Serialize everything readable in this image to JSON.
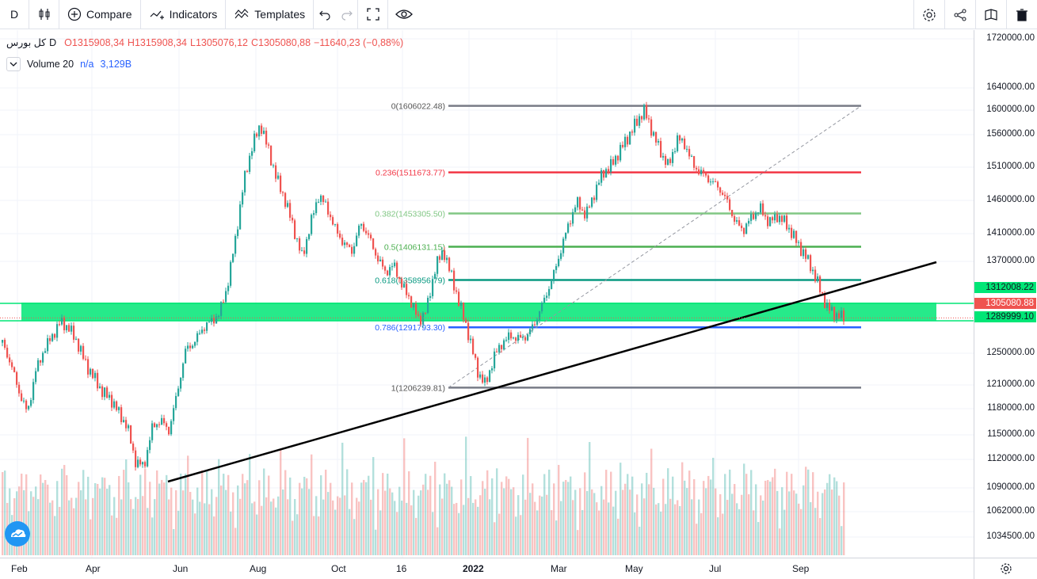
{
  "toolbar": {
    "interval": "D",
    "compare_label": "Compare",
    "indicators_label": "Indicators",
    "templates_label": "Templates"
  },
  "legend": {
    "symbol": "کل بورس",
    "interval": "D",
    "open": "O1315908,34",
    "high": "H1315908,34",
    "low": "L1305076,12",
    "close": "C1305080,88",
    "change": "−11640,23 (−0,88%)"
  },
  "volume_legend": {
    "name": "Volume 20",
    "na": "n/a",
    "value": "3,129B"
  },
  "price_axis": {
    "labels": [
      "1720000.00",
      "1640000.00",
      "1600000.00",
      "1560000.00",
      "1510000.00",
      "1460000.00",
      "1410000.00",
      "1370000.00",
      "1250000.00",
      "1210000.00",
      "1180000.00",
      "1150000.00",
      "1120000.00",
      "1090000.00",
      "1062000.00",
      "1034500.00"
    ],
    "tags": [
      {
        "text": "1312008.22",
        "bg": "#00e676"
      },
      {
        "text": "1305080.88",
        "bg": "#ef5350"
      },
      {
        "text": "1289999.10",
        "bg": "#00e676"
      }
    ]
  },
  "time_axis": {
    "labels": [
      "Feb",
      "Apr",
      "Jun",
      "Aug",
      "Oct",
      "16",
      "2022",
      "Mar",
      "May",
      "Jul",
      "Sep"
    ]
  },
  "fib_levels": [
    {
      "label": "0(1606022.48)",
      "price": 1606022.48,
      "color": "#787b86"
    },
    {
      "label": "0.236(1511673.77)",
      "price": 1511673.77,
      "color": "#f23645"
    },
    {
      "label": "0.382(1453305.50)",
      "price": 1453305.5,
      "color": "#81c784"
    },
    {
      "label": "0.5(1406131.15)",
      "price": 1406131.15,
      "color": "#4caf50"
    },
    {
      "label": "0.618(1358956.79)",
      "price": 1358956.79,
      "color": "#089981"
    },
    {
      "label": "0.786(1291793.30)",
      "price": 1291793.3,
      "color": "#2962ff"
    },
    {
      "label": "1(1206239.81)",
      "price": 1206239.81,
      "color": "#787b86"
    }
  ],
  "colors": {
    "up": "#26a69a",
    "down": "#ef5350",
    "zone": "#00e676",
    "trendline": "#000000"
  },
  "chart_data": {
    "type": "candlestick",
    "series": [
      {
        "name": "کل بورس",
        "close": 1305080.88
      }
    ],
    "ylim": [
      1020000,
      1730000
    ],
    "x": [
      "Feb",
      "Apr",
      "Jun",
      "Aug",
      "Oct",
      "16",
      "2022",
      "Mar",
      "May",
      "Jul",
      "Sep"
    ],
    "path": [
      1270000,
      1240000,
      1200000,
      1170000,
      1230000,
      1260000,
      1280000,
      1300000,
      1290000,
      1270000,
      1240000,
      1220000,
      1200000,
      1190000,
      1170000,
      1150000,
      1100000,
      1095000,
      1150000,
      1160000,
      1145000,
      1200000,
      1260000,
      1270000,
      1290000,
      1300000,
      1310000,
      1350000,
      1420000,
      1500000,
      1550000,
      1580000,
      1540000,
      1500000,
      1470000,
      1430000,
      1390000,
      1440000,
      1480000,
      1460000,
      1430000,
      1410000,
      1400000,
      1440000,
      1420000,
      1390000,
      1370000,
      1380000,
      1350000,
      1330000,
      1300000,
      1320000,
      1380000,
      1400000,
      1360000,
      1320000,
      1280000,
      1230000,
      1210000,
      1250000,
      1270000,
      1280000,
      1275000,
      1280000,
      1300000,
      1330000,
      1360000,
      1400000,
      1440000,
      1470000,
      1450000,
      1480000,
      1510000,
      1520000,
      1540000,
      1560000,
      1580000,
      1600000,
      1570000,
      1540000,
      1520000,
      1560000,
      1550000,
      1520000,
      1510000,
      1500000,
      1490000,
      1470000,
      1440000,
      1430000,
      1450000,
      1460000,
      1440000,
      1450000,
      1440000,
      1420000,
      1400000,
      1380000,
      1350000,
      1320000,
      1310000,
      1305080
    ]
  }
}
